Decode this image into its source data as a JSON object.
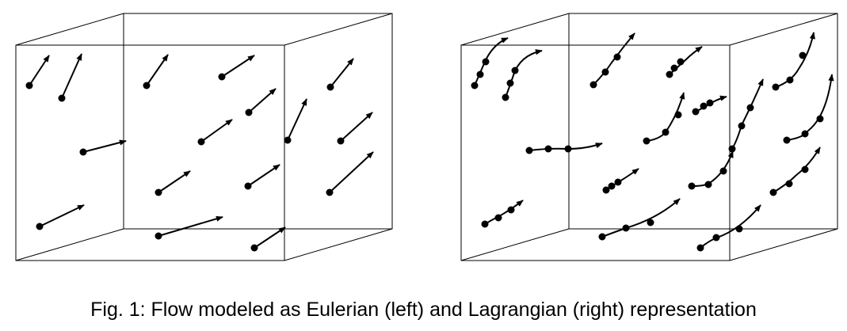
{
  "caption": "Fig. 1: Flow modeled as Eulerian (left) and Lagrangian (right) representation",
  "colors": {
    "ink": "#000000",
    "background": "#ffffff"
  },
  "panels": [
    {
      "id": "eulerian",
      "representation": "Eulerian",
      "arrow_count": 17
    },
    {
      "id": "lagrangian",
      "representation": "Lagrangian",
      "pathline_count": 18
    }
  ]
}
